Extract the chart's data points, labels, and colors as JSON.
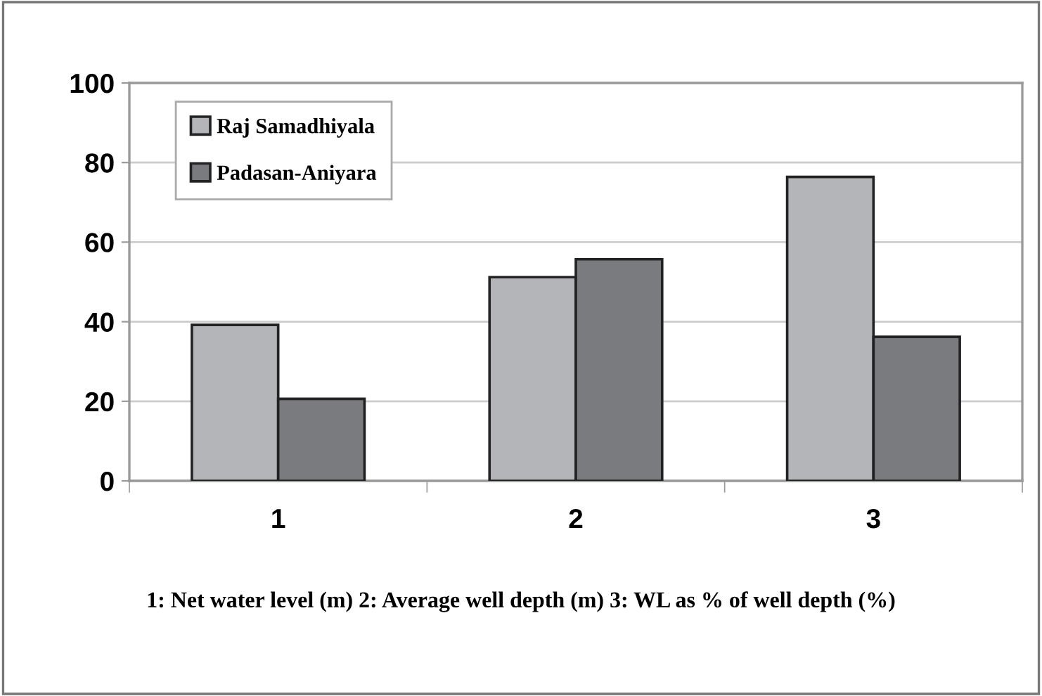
{
  "chart_data": {
    "type": "bar",
    "categories": [
      "1",
      "2",
      "3"
    ],
    "series": [
      {
        "name": "Raj Samadhiyala",
        "color": "#b4b5b8",
        "values": [
          39.2,
          51.2,
          76.4
        ]
      },
      {
        "name": "Padasan-Aniyara",
        "color": "#7a7b7f",
        "values": [
          20.6,
          55.7,
          36.2
        ]
      }
    ],
    "ylim": [
      0,
      100
    ],
    "yticks": [
      0,
      20,
      40,
      60,
      80,
      100
    ],
    "grid": "y",
    "legend": "top left",
    "annotations": [
      "1: Net water level (m) 2: Average well depth (m) 3: WL as % of well depth (%)"
    ]
  }
}
